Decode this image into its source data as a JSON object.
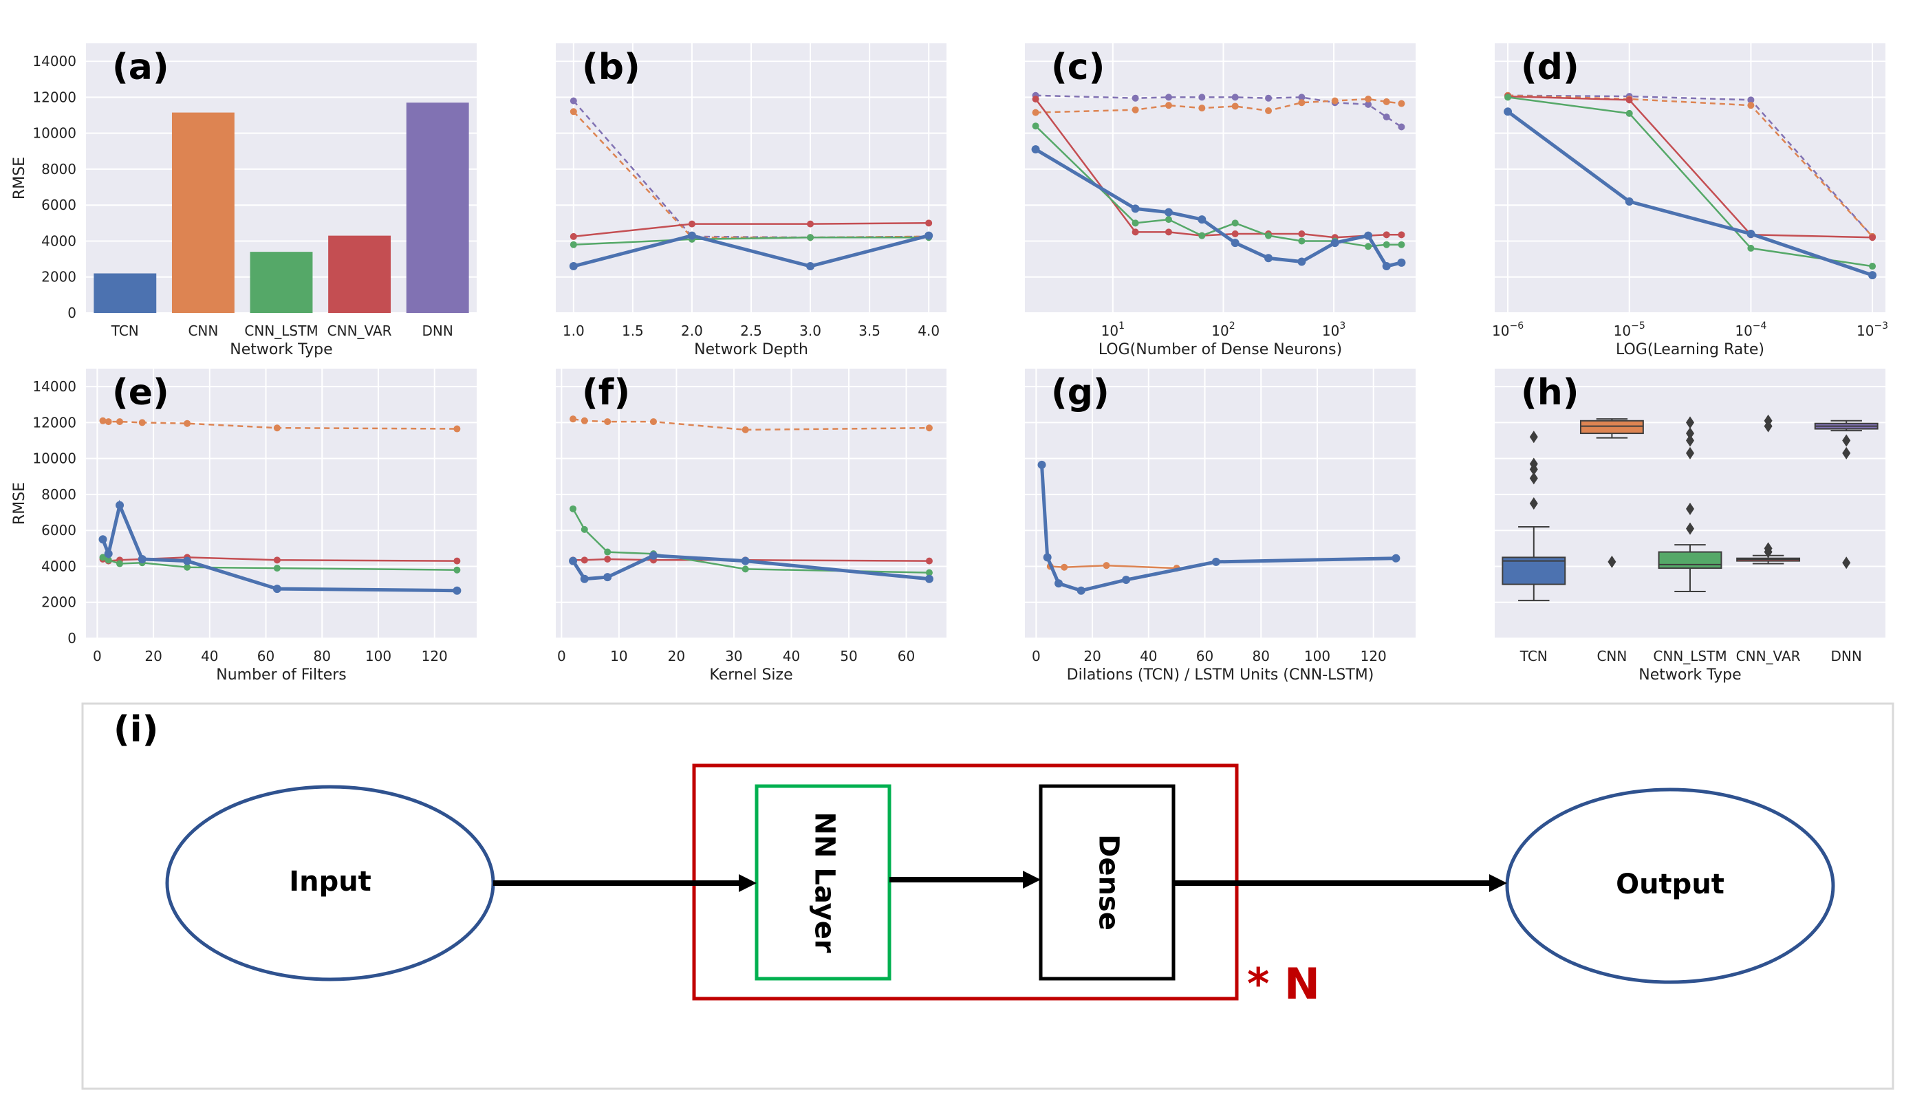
{
  "chart_data": [
    {
      "id": "a",
      "type": "bar",
      "panel_label": "(a)",
      "xlabel": "Network Type",
      "ylabel": "RMSE",
      "categories": [
        "TCN",
        "CNN",
        "CNN_LSTM",
        "CNN_VAR",
        "DNN"
      ],
      "values": [
        2200,
        11150,
        3400,
        4300,
        11700
      ],
      "colors": [
        "#4c72b0",
        "#dd8452",
        "#55a868",
        "#c44e52",
        "#8172b3"
      ],
      "ylim": [
        0,
        15000
      ],
      "yticks": [
        0,
        2000,
        4000,
        6000,
        8000,
        10000,
        12000,
        14000
      ]
    },
    {
      "id": "b",
      "type": "line",
      "panel_label": "(b)",
      "xlabel": "Network Depth",
      "ylabel": "",
      "xlim": [
        0.85,
        4.15
      ],
      "ylim": [
        0,
        15000
      ],
      "xticks": [
        1.0,
        1.5,
        2.0,
        2.5,
        3.0,
        3.5,
        4.0
      ],
      "xtick_labels": [
        "1.0",
        "1.5",
        "2.0",
        "2.5",
        "3.0",
        "3.5",
        "4.0"
      ],
      "series": [
        {
          "color": "#8172b3",
          "dashed": true,
          "x": [
            1,
            2,
            3,
            4
          ],
          "y": [
            11800,
            4250,
            4200,
            4250
          ]
        },
        {
          "color": "#dd8452",
          "dashed": true,
          "x": [
            1,
            2,
            3,
            4
          ],
          "y": [
            11200,
            4200,
            4200,
            4250
          ]
        },
        {
          "color": "#c44e52",
          "x": [
            1,
            2,
            3,
            4
          ],
          "y": [
            4250,
            4950,
            4950,
            5000
          ]
        },
        {
          "color": "#55a868",
          "x": [
            1,
            2,
            3,
            4
          ],
          "y": [
            3800,
            4100,
            4200,
            4200
          ]
        },
        {
          "color": "#4c72b0",
          "thick": true,
          "x": [
            1,
            2,
            3,
            4
          ],
          "y": [
            2600,
            4300,
            2600,
            4300
          ]
        }
      ]
    },
    {
      "id": "c",
      "type": "line",
      "panel_label": "(c)",
      "xlabel": "LOG(Number of Dense Neurons)",
      "ylabel": "",
      "xscale": "log",
      "xlim": [
        1.6,
        5500
      ],
      "ylim": [
        0,
        15000
      ],
      "xticks": [
        10,
        100,
        1000
      ],
      "xtick_labels": [
        "10^1",
        "10^2",
        "10^3"
      ],
      "series": [
        {
          "color": "#8172b3",
          "dashed": true,
          "x": [
            2,
            16,
            32,
            64,
            128,
            256,
            512,
            1024,
            2048,
            3000,
            4096
          ],
          "y": [
            12100,
            11950,
            12000,
            12000,
            12000,
            11950,
            12000,
            11700,
            11600,
            10900,
            10350
          ]
        },
        {
          "color": "#dd8452",
          "dashed": true,
          "x": [
            2,
            16,
            32,
            64,
            128,
            256,
            512,
            1024,
            2048,
            3000,
            4096
          ],
          "y": [
            11150,
            11300,
            11550,
            11400,
            11500,
            11250,
            11700,
            11800,
            11900,
            11750,
            11650
          ]
        },
        {
          "color": "#c44e52",
          "x": [
            2,
            16,
            32,
            64,
            128,
            256,
            512,
            1024,
            2048,
            3000,
            4096
          ],
          "y": [
            11900,
            4500,
            4500,
            4300,
            4400,
            4400,
            4400,
            4200,
            4300,
            4350,
            4350
          ]
        },
        {
          "color": "#55a868",
          "x": [
            2,
            16,
            32,
            64,
            128,
            256,
            512,
            1024,
            2048,
            3000,
            4096
          ],
          "y": [
            10400,
            5000,
            5200,
            4300,
            5000,
            4300,
            4000,
            4000,
            3700,
            3800,
            3800
          ]
        },
        {
          "color": "#4c72b0",
          "thick": true,
          "x": [
            2,
            16,
            32,
            64,
            128,
            256,
            512,
            1024,
            2048,
            3000,
            4096
          ],
          "y": [
            9100,
            5800,
            5600,
            5200,
            3900,
            3050,
            2850,
            3900,
            4300,
            2600,
            2800
          ]
        }
      ]
    },
    {
      "id": "d",
      "type": "line",
      "panel_label": "(d)",
      "xlabel": "LOG(Learning Rate)",
      "ylabel": "",
      "xscale": "log",
      "xlim": [
        7.8e-07,
        0.00128
      ],
      "ylim": [
        0,
        15000
      ],
      "xticks": [
        1e-06,
        1e-05,
        0.0001,
        0.001
      ],
      "xtick_labels": [
        "10^-6",
        "10^-5",
        "10^-4",
        "10^-3"
      ],
      "series": [
        {
          "color": "#8172b3",
          "dashed": true,
          "x": [
            1e-06,
            1e-05,
            0.0001,
            0.001
          ],
          "y": [
            12100,
            12050,
            11850,
            4250
          ]
        },
        {
          "color": "#dd8452",
          "dashed": true,
          "x": [
            1e-06,
            1e-05,
            0.0001,
            0.001
          ],
          "y": [
            12100,
            11900,
            11550,
            4250
          ]
        },
        {
          "color": "#c44e52",
          "x": [
            1e-06,
            1e-05,
            0.0001,
            0.001
          ],
          "y": [
            12050,
            11850,
            4350,
            4200
          ]
        },
        {
          "color": "#55a868",
          "x": [
            1e-06,
            1e-05,
            0.0001,
            0.001
          ],
          "y": [
            12000,
            11100,
            3600,
            2600
          ]
        },
        {
          "color": "#4c72b0",
          "thick": true,
          "x": [
            1e-06,
            1e-05,
            0.0001,
            0.001
          ],
          "y": [
            11200,
            6200,
            4400,
            2100
          ]
        }
      ]
    },
    {
      "id": "e",
      "type": "line",
      "panel_label": "(e)",
      "xlabel": "Number of Filters",
      "ylabel": "RMSE",
      "xlim": [
        -4,
        135
      ],
      "ylim": [
        0,
        15000
      ],
      "xticks": [
        0,
        20,
        40,
        60,
        80,
        100,
        120
      ],
      "xtick_labels": [
        "0",
        "20",
        "40",
        "60",
        "80",
        "100",
        "120"
      ],
      "series": [
        {
          "color": "#dd8452",
          "dashed": true,
          "x": [
            2,
            4,
            8,
            16,
            32,
            64,
            128
          ],
          "y": [
            12100,
            12050,
            12050,
            12000,
            11950,
            11700,
            11650
          ]
        },
        {
          "color": "#c44e52",
          "x": [
            2,
            4,
            8,
            16,
            32,
            64,
            128
          ],
          "y": [
            4400,
            4300,
            4350,
            4400,
            4500,
            4350,
            4300
          ]
        },
        {
          "color": "#55a868",
          "x": [
            2,
            4,
            8,
            16,
            32,
            64,
            128
          ],
          "y": [
            4500,
            4350,
            4150,
            4200,
            3950,
            3900,
            3800
          ]
        },
        {
          "color": "#4c72b0",
          "thick": true,
          "x": [
            2,
            4,
            8,
            16,
            32,
            64,
            128
          ],
          "y": [
            5500,
            4700,
            7400,
            4400,
            4300,
            2750,
            2650
          ]
        }
      ]
    },
    {
      "id": "f",
      "type": "line",
      "panel_label": "(f)",
      "xlabel": "Kernel Size",
      "ylabel": "",
      "xlim": [
        -1,
        67
      ],
      "ylim": [
        0,
        15000
      ],
      "xticks": [
        0,
        10,
        20,
        30,
        40,
        50,
        60
      ],
      "xtick_labels": [
        "0",
        "10",
        "20",
        "30",
        "40",
        "50",
        "60"
      ],
      "series": [
        {
          "color": "#dd8452",
          "dashed": true,
          "x": [
            2,
            4,
            8,
            16,
            32,
            64
          ],
          "y": [
            12200,
            12100,
            12050,
            12050,
            11600,
            11700
          ]
        },
        {
          "color": "#c44e52",
          "x": [
            2,
            4,
            8,
            16,
            32,
            64
          ],
          "y": [
            4350,
            4350,
            4400,
            4350,
            4350,
            4300
          ]
        },
        {
          "color": "#55a868",
          "x": [
            2,
            4,
            8,
            16,
            32,
            64
          ],
          "y": [
            7200,
            6050,
            4800,
            4700,
            3850,
            3650
          ]
        },
        {
          "color": "#4c72b0",
          "thick": true,
          "x": [
            2,
            4,
            8,
            16,
            32,
            64
          ],
          "y": [
            4300,
            3300,
            3400,
            4600,
            4300,
            3300
          ]
        }
      ]
    },
    {
      "id": "g",
      "type": "line",
      "panel_label": "(g)",
      "xlabel": "Dilations (TCN) / LSTM Units (CNN-LSTM)",
      "ylabel": "",
      "xlim": [
        -4,
        135
      ],
      "ylim": [
        0,
        15000
      ],
      "xticks": [
        0,
        20,
        40,
        60,
        80,
        100,
        120
      ],
      "xtick_labels": [
        "0",
        "20",
        "40",
        "60",
        "80",
        "100",
        "120"
      ],
      "series": [
        {
          "color": "#dd8452",
          "x": [
            5,
            10,
            25,
            50
          ],
          "y": [
            4000,
            3950,
            4050,
            3900
          ]
        },
        {
          "color": "#4c72b0",
          "thick": true,
          "x": [
            2,
            4,
            8,
            16,
            32,
            64,
            128
          ],
          "y": [
            9650,
            4500,
            3050,
            2650,
            3250,
            4250,
            4450
          ]
        }
      ]
    },
    {
      "id": "h",
      "type": "box",
      "panel_label": "(h)",
      "xlabel": "Network Type",
      "ylabel": "",
      "categories": [
        "TCN",
        "CNN",
        "CNN_LSTM",
        "CNN_VAR",
        "DNN"
      ],
      "colors": [
        "#4c72b0",
        "#dd8452",
        "#55a868",
        "#c44e52",
        "#8172b3"
      ],
      "ylim": [
        0,
        15000
      ],
      "boxes": [
        {
          "whislo": 2100,
          "q1": 3000,
          "med": 4300,
          "q3": 4500,
          "whishi": 6200,
          "fliers": [
            7500,
            8900,
            9400,
            9700,
            11200
          ]
        },
        {
          "whislo": 11150,
          "q1": 11400,
          "med": 11800,
          "q3": 12100,
          "whishi": 12200,
          "fliers": [
            4250
          ]
        },
        {
          "whislo": 2600,
          "q1": 3900,
          "med": 4100,
          "q3": 4800,
          "whishi": 5200,
          "fliers": [
            6100,
            7200,
            10300,
            11000,
            11400,
            12000
          ]
        },
        {
          "whislo": 4150,
          "q1": 4300,
          "med": 4400,
          "q3": 4450,
          "whishi": 4600,
          "fliers": [
            4800,
            5000,
            11800,
            12100
          ]
        },
        {
          "whislo": 11550,
          "q1": 11650,
          "med": 11800,
          "q3": 11950,
          "whishi": 12100,
          "fliers": [
            4200,
            10300,
            11000
          ]
        }
      ]
    }
  ],
  "diagram": {
    "label": "(i)",
    "input": "Input",
    "output": "Output",
    "nn_layer": "NN Layer",
    "dense": "Dense",
    "repeat": "* N",
    "colors": {
      "ellipse": "#2f528f",
      "nn_box": "#00b050",
      "repeat_box": "#c00000",
      "dense_box": "#000000"
    }
  }
}
